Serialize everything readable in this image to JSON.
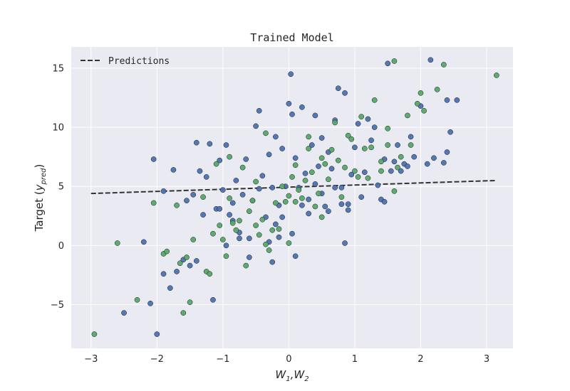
{
  "chart_data": {
    "type": "scatter",
    "title": "Trained Model",
    "xlabel": "W₁,W₂",
    "xlabel_parts": {
      "base1": "W",
      "sub1": "1",
      "sep": ",",
      "base2": "W",
      "sub2": "2"
    },
    "ylabel": "Target (y_pred)",
    "ylabel_parts": {
      "prefix": "Target (",
      "base": "y",
      "sub": "pred",
      "suffix": ")"
    },
    "xlim": [
      -3.3,
      3.4
    ],
    "ylim": [
      -8.7,
      16.8
    ],
    "xticks": [
      -3,
      -2,
      -1,
      0,
      1,
      2,
      3
    ],
    "yticks": [
      -5,
      0,
      5,
      10,
      15
    ],
    "xtick_labels": [
      "−3",
      "−2",
      "−1",
      "0",
      "1",
      "2",
      "3"
    ],
    "ytick_labels": [
      "−5",
      "0",
      "5",
      "10",
      "15"
    ],
    "grid": true,
    "legend_position": "upper-left",
    "colors": {
      "background": "#eaeaf2",
      "grid": "#ffffff",
      "series_a": "#4c72b0",
      "series_b": "#55a868",
      "line": "#333333"
    },
    "line": {
      "name": "Predictions",
      "style": "dashed",
      "x": [
        -3.0,
        3.15
      ],
      "y": [
        4.4,
        5.5
      ]
    },
    "series": [
      {
        "color": "#4c72b0",
        "points": [
          [
            -2.5,
            -5.7
          ],
          [
            -2.1,
            -4.9
          ],
          [
            -2.0,
            -7.5
          ],
          [
            -1.9,
            -2.4
          ],
          [
            -1.8,
            -3.6
          ],
          [
            -1.7,
            -2.2
          ],
          [
            -1.6,
            -1.2
          ],
          [
            -1.5,
            -1.7
          ],
          [
            -1.4,
            -1.3
          ],
          [
            -2.2,
            0.3
          ],
          [
            -2.05,
            7.3
          ],
          [
            -1.9,
            4.6
          ],
          [
            -1.75,
            6.4
          ],
          [
            -1.55,
            3.8
          ],
          [
            -1.45,
            4.3
          ],
          [
            -1.35,
            6.3
          ],
          [
            -1.25,
            5.8
          ],
          [
            -1.2,
            8.6
          ],
          [
            -1.1,
            3.1
          ],
          [
            -1.05,
            7.2
          ],
          [
            -1.0,
            4.7
          ],
          [
            -0.95,
            8.5
          ],
          [
            -0.9,
            2.6
          ],
          [
            -0.85,
            3.6
          ],
          [
            -0.8,
            5.5
          ],
          [
            -0.75,
            1.1
          ],
          [
            -0.7,
            4.3
          ],
          [
            -0.65,
            7.3
          ],
          [
            -0.6,
            0.6
          ],
          [
            -0.55,
            3.8
          ],
          [
            -0.5,
            10.1
          ],
          [
            -0.45,
            11.4
          ],
          [
            -0.4,
            5.9
          ],
          [
            -0.35,
            2.4
          ],
          [
            -0.3,
            7.7
          ],
          [
            -0.25,
            4.9
          ],
          [
            -0.2,
            9.2
          ],
          [
            -0.15,
            3.4
          ],
          [
            -0.1,
            8.2
          ],
          [
            -0.05,
            5.0
          ],
          [
            0.0,
            12.0
          ],
          [
            0.05,
            11.1
          ],
          [
            0.1,
            7.4
          ],
          [
            0.15,
            4.9
          ],
          [
            0.2,
            11.7
          ],
          [
            0.25,
            6.1
          ],
          [
            0.3,
            3.9
          ],
          [
            0.35,
            8.5
          ],
          [
            0.4,
            11.0
          ],
          [
            0.45,
            6.7
          ],
          [
            0.5,
            9.1
          ],
          [
            0.55,
            3.3
          ],
          [
            0.6,
            7.9
          ],
          [
            0.65,
            6.5
          ],
          [
            0.7,
            10.6
          ],
          [
            0.75,
            13.3
          ],
          [
            0.8,
            4.9
          ],
          [
            0.85,
            12.9
          ],
          [
            0.9,
            3.0
          ],
          [
            0.95,
            6.0
          ],
          [
            1.0,
            8.3
          ],
          [
            1.05,
            10.3
          ],
          [
            1.1,
            4.1
          ],
          [
            1.15,
            6.2
          ],
          [
            1.2,
            10.7
          ],
          [
            1.25,
            8.9
          ],
          [
            1.3,
            10.0
          ],
          [
            1.35,
            5.1
          ],
          [
            1.4,
            3.9
          ],
          [
            1.45,
            7.3
          ],
          [
            1.5,
            15.4
          ],
          [
            1.55,
            6.3
          ],
          [
            1.6,
            7.1
          ],
          [
            1.65,
            8.5
          ],
          [
            1.7,
            6.3
          ],
          [
            1.75,
            6.9
          ],
          [
            1.8,
            6.7
          ],
          [
            1.85,
            9.2
          ],
          [
            1.9,
            7.5
          ],
          [
            2.0,
            11.8
          ],
          [
            2.1,
            6.9
          ],
          [
            2.15,
            15.7
          ],
          [
            2.2,
            7.4
          ],
          [
            2.35,
            7.0
          ],
          [
            2.4,
            12.3
          ],
          [
            2.45,
            9.6
          ],
          [
            2.55,
            12.3
          ],
          [
            0.85,
            0.2
          ],
          [
            0.03,
            14.5
          ],
          [
            -1.4,
            8.7
          ],
          [
            -1.3,
            2.6
          ],
          [
            -1.15,
            -4.6
          ],
          [
            -1.05,
            3.1
          ],
          [
            -0.95,
            0.0
          ],
          [
            -0.85,
            2.1
          ],
          [
            -0.75,
            0.6
          ],
          [
            -0.6,
            -1.0
          ],
          [
            -0.45,
            4.8
          ],
          [
            -0.3,
            0.3
          ],
          [
            -0.25,
            -1.4
          ],
          [
            -0.2,
            1.8
          ],
          [
            -0.15,
            0.7
          ],
          [
            -0.1,
            2.4
          ],
          [
            0.05,
            1.0
          ],
          [
            0.1,
            -0.9
          ],
          [
            0.2,
            3.4
          ],
          [
            0.3,
            2.7
          ],
          [
            0.4,
            5.2
          ],
          [
            0.5,
            4.4
          ],
          [
            0.6,
            2.9
          ],
          [
            0.7,
            4.9
          ],
          [
            0.8,
            3.5
          ],
          [
            0.9,
            3.5
          ],
          [
            1.45,
            3.7
          ],
          [
            2.4,
            7.9
          ]
        ]
      },
      {
        "color": "#55a868",
        "points": [
          [
            -2.95,
            -7.5
          ],
          [
            -2.6,
            0.2
          ],
          [
            -2.3,
            -4.6
          ],
          [
            -1.9,
            -0.7
          ],
          [
            -1.85,
            -0.5
          ],
          [
            -1.65,
            -1.5
          ],
          [
            -1.6,
            -5.7
          ],
          [
            -1.5,
            -4.8
          ],
          [
            -1.45,
            0.5
          ],
          [
            -1.25,
            -2.2
          ],
          [
            -1.15,
            1.0
          ],
          [
            -1.05,
            1.7
          ],
          [
            -0.95,
            -0.9
          ],
          [
            -0.85,
            1.9
          ],
          [
            -0.75,
            2.1
          ],
          [
            -0.65,
            -1.7
          ],
          [
            -0.55,
            3.8
          ],
          [
            -0.45,
            0.9
          ],
          [
            -0.35,
            0.1
          ],
          [
            -0.25,
            1.3
          ],
          [
            -0.15,
            1.4
          ],
          [
            -0.05,
            3.7
          ],
          [
            0.05,
            5.8
          ],
          [
            0.15,
            4.7
          ],
          [
            0.25,
            5.5
          ],
          [
            0.35,
            6.2
          ],
          [
            0.45,
            4.4
          ],
          [
            0.55,
            6.9
          ],
          [
            0.65,
            8.1
          ],
          [
            0.75,
            7.2
          ],
          [
            0.85,
            6.6
          ],
          [
            0.95,
            9.0
          ],
          [
            1.05,
            5.8
          ],
          [
            1.15,
            8.2
          ],
          [
            1.25,
            8.3
          ],
          [
            1.4,
            7.1
          ],
          [
            1.5,
            8.5
          ],
          [
            1.6,
            15.6
          ],
          [
            1.7,
            7.5
          ],
          [
            1.85,
            8.5
          ],
          [
            1.95,
            12.0
          ],
          [
            2.05,
            11.4
          ],
          [
            2.25,
            13.2
          ],
          [
            2.35,
            15.3
          ],
          [
            3.15,
            14.4
          ],
          [
            -2.05,
            3.6
          ],
          [
            -1.7,
            3.4
          ],
          [
            -1.3,
            4.1
          ],
          [
            -1.1,
            6.9
          ],
          [
            -0.9,
            7.5
          ],
          [
            -0.7,
            6.6
          ],
          [
            -0.5,
            5.4
          ],
          [
            -0.35,
            9.5
          ],
          [
            -0.1,
            5.0
          ],
          [
            0.1,
            6.8
          ],
          [
            0.3,
            9.2
          ],
          [
            0.5,
            7.4
          ],
          [
            0.7,
            10.4
          ],
          [
            0.9,
            9.3
          ],
          [
            1.1,
            10.9
          ],
          [
            1.3,
            12.3
          ],
          [
            1.5,
            9.9
          ],
          [
            1.65,
            6.6
          ],
          [
            1.8,
            11.0
          ],
          [
            2.0,
            12.9
          ],
          [
            -1.2,
            -2.4
          ],
          [
            -1.0,
            0.5
          ],
          [
            -0.8,
            1.3
          ],
          [
            -0.6,
            2.9
          ],
          [
            -0.4,
            2.2
          ],
          [
            -0.2,
            3.6
          ],
          [
            0.0,
            4.2
          ],
          [
            0.2,
            4.0
          ],
          [
            0.4,
            3.3
          ],
          [
            0.6,
            5.6
          ],
          [
            0.8,
            4.1
          ],
          [
            1.0,
            6.3
          ],
          [
            1.2,
            5.7
          ],
          [
            1.4,
            6.3
          ],
          [
            -0.3,
            -0.4
          ],
          [
            0.0,
            0.2
          ],
          [
            -0.9,
            4.0
          ],
          [
            -0.5,
            1.7
          ],
          [
            0.1,
            3.7
          ],
          [
            0.3,
            8.2
          ],
          [
            0.5,
            2.4
          ],
          [
            1.6,
            4.6
          ],
          [
            -1.55,
            -1.0
          ]
        ]
      }
    ]
  }
}
